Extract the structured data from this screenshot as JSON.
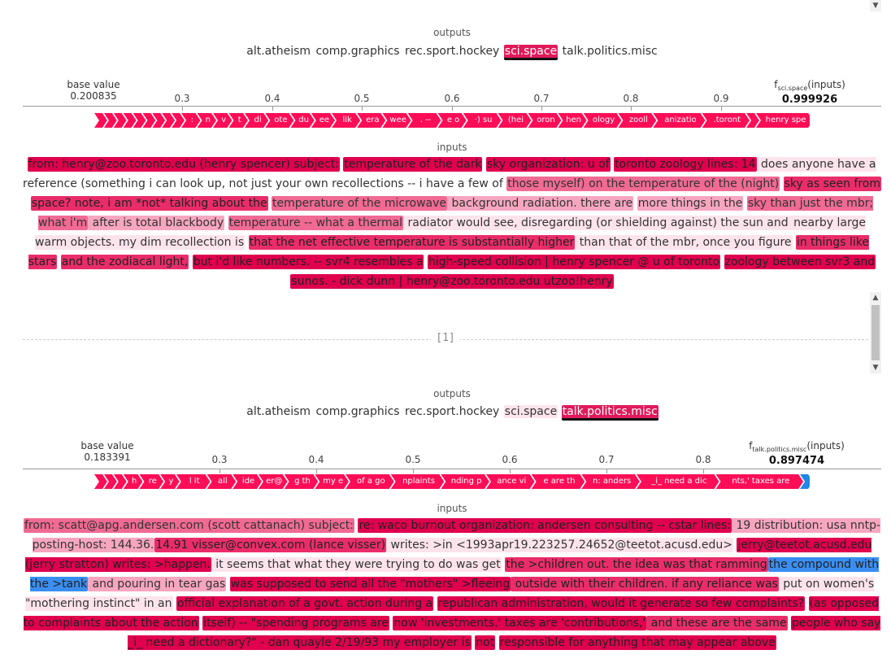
{
  "divider_label": "[1]",
  "panel1": {
    "outputs_title": "outputs",
    "outputs": [
      "alt.atheism",
      "comp.graphics",
      "rec.sport.hockey",
      "sci.space",
      "talk.politics.misc"
    ],
    "active_output": "sci.space",
    "base_value_label": "base value",
    "base_value": "0.200835",
    "fx_prefix": "f",
    "fx_sub": "sci.space",
    "fx_suffix": "(inputs)",
    "fx_value": "0.999926",
    "ticks": [
      "0.3",
      "0.4",
      "0.5",
      "0.6",
      "0.7",
      "0.8",
      "0.9"
    ],
    "bar_segments": [
      "",
      "",
      "",
      "",
      "",
      "",
      "",
      "",
      "",
      ":",
      "n",
      "v",
      "t",
      "di",
      "ote",
      "du",
      "ee",
      "lik",
      "era",
      "wee",
      ". --",
      "e o",
      "·) su",
      "(hei",
      "oron",
      "hen",
      "ology",
      "zooll",
      "anizatio",
      ".toront",
      "",
      "henry spe"
    ],
    "inputs_title": "inputs",
    "tokens": [
      {
        "t": "from: henry@zoo.toronto.edu (henry spencer) subject:",
        "h": "h5"
      },
      {
        "t": " ",
        "h": ""
      },
      {
        "t": "temperature of the dark",
        "h": "h5"
      },
      {
        "t": " ",
        "h": ""
      },
      {
        "t": "sky organization: u of",
        "h": "h5"
      },
      {
        "t": " ",
        "h": ""
      },
      {
        "t": "toronto zoology lines: 14",
        "h": "h5"
      },
      {
        "t": " does anyone have a",
        "h": "h1"
      },
      {
        "t": " reference (something i can look up, not just your own recollections -- i have a few of ",
        "h": ""
      },
      {
        "t": "those myself) on the temperature of the (night)",
        "h": "h3"
      },
      {
        "t": " ",
        "h": ""
      },
      {
        "t": "sky as seen from",
        "h": "h4"
      },
      {
        "t": " ",
        "h": ""
      },
      {
        "t": "space? note, i am *not* talking about the",
        "h": "h4"
      },
      {
        "t": " ",
        "h": ""
      },
      {
        "t": "temperature of the microwave",
        "h": "h3"
      },
      {
        "t": " background radiation. there are",
        "h": "h2"
      },
      {
        "t": " ",
        "h": ""
      },
      {
        "t": "more things in the",
        "h": "h2"
      },
      {
        "t": " ",
        "h": ""
      },
      {
        "t": "sky than just the mbr; what i'm",
        "h": "h3"
      },
      {
        "t": " after is total blackbody",
        "h": "h2"
      },
      {
        "t": " ",
        "h": ""
      },
      {
        "t": "temperature -- what a thermal",
        "h": "h3"
      },
      {
        "t": " radiator would see, disregarding (or shielding against) the sun and",
        "h": "h1"
      },
      {
        "t": " nearby large warm objects. my dim recollection is",
        "h": "h1"
      },
      {
        "t": " ",
        "h": ""
      },
      {
        "t": "that the net effective temperature is substantially higher",
        "h": "h4"
      },
      {
        "t": " than that of the mbr, once you figure",
        "h": "h1"
      },
      {
        "t": " ",
        "h": ""
      },
      {
        "t": "in things like stars",
        "h": "h4"
      },
      {
        "t": " ",
        "h": ""
      },
      {
        "t": "and the zodiacal light,",
        "h": "h4"
      },
      {
        "t": " ",
        "h": ""
      },
      {
        "t": "but i'd like numbers. -- svr4 resembles a",
        "h": "h5"
      },
      {
        "t": " ",
        "h": ""
      },
      {
        "t": "high-speed collision | henry spencer @ u of toronto",
        "h": "h5"
      },
      {
        "t": " ",
        "h": ""
      },
      {
        "t": "zoology between svr3 and",
        "h": "h5"
      },
      {
        "t": " ",
        "h": ""
      },
      {
        "t": "sunos. - dick dunn | henry@zoo.toronto.edu utzoo!henry",
        "h": "h5"
      }
    ]
  },
  "panel2": {
    "outputs_title": "outputs",
    "outputs": [
      "alt.atheism",
      "comp.graphics",
      "rec.sport.hockey",
      "sci.space",
      "talk.politics.misc"
    ],
    "active_output": "talk.politics.misc",
    "base_value_label": "base value",
    "base_value": "0.183391",
    "fx_prefix": "f",
    "fx_sub": "talk.politics.misc",
    "fx_suffix": "(inputs)",
    "fx_value": "0.897474",
    "ticks": [
      "0.3",
      "0.4",
      "0.5",
      "0.6",
      "0.7",
      "0.8"
    ],
    "bar_segments": [
      "",
      "",
      "",
      "h",
      "re",
      "y",
      "l it",
      "all",
      "ide",
      "er@",
      "g th",
      "my e",
      "of a go",
      "nplaints",
      "nding p",
      "ance vi",
      "e are th",
      "n: anders",
      "_i_ need a dic",
      "nts,' taxes are"
    ],
    "inputs_title": "inputs",
    "tokens": [
      {
        "t": "from: scatt@apg.andersen.com (scott cattanach) subject:",
        "h": "h3"
      },
      {
        "t": " ",
        "h": ""
      },
      {
        "t": "re: waco burnout organization: andersen consulting -- cstar lines:",
        "h": "h5"
      },
      {
        "t": " 19 distribution: usa nntp-posting-host: 144.36.",
        "h": "h2"
      },
      {
        "t": "14.91 visser@convex.com (lance visser)",
        "h": "h4"
      },
      {
        "t": " writes: >in <1993apr19.223257.24652@teetot.acusd.edu>",
        "h": "h1"
      },
      {
        "t": " ",
        "h": ""
      },
      {
        "t": "jerry@teetot.acusd.edu (jerry stratton) writes: >happen.",
        "h": "h5"
      },
      {
        "t": " it seems that what they were trying to do was get",
        "h": "h1"
      },
      {
        "t": " ",
        "h": ""
      },
      {
        "t": "the >children out. the idea was that ramming",
        "h": "h4"
      },
      {
        "t": "the compound with the >tank",
        "h": "hb"
      },
      {
        "t": " and pouring in tear gas",
        "h": "h2"
      },
      {
        "t": " ",
        "h": ""
      },
      {
        "t": "was supposed to send all the \"mothers\" >fleeing",
        "h": "h5"
      },
      {
        "t": " outside with their children. if any reliance was",
        "h": "h4"
      },
      {
        "t": " put on women's \"mothering instinct\" in an",
        "h": "h1"
      },
      {
        "t": " ",
        "h": ""
      },
      {
        "t": "official explanation of a govt. action during a",
        "h": "h5"
      },
      {
        "t": " ",
        "h": ""
      },
      {
        "t": "republican administration, would it generate so few complaints?",
        "h": "h5"
      },
      {
        "t": " ",
        "h": ""
      },
      {
        "t": "(as opposed to complaints about the action",
        "h": "h5"
      },
      {
        "t": " ",
        "h": ""
      },
      {
        "t": "itself) -- \"spending programs are",
        "h": "h5"
      },
      {
        "t": " ",
        "h": ""
      },
      {
        "t": "now 'investments,' taxes are 'contributions,'",
        "h": "h5"
      },
      {
        "t": " and these are the same",
        "h": "h4"
      },
      {
        "t": " ",
        "h": ""
      },
      {
        "t": "people who say _i_ need a dictionary?\" - dan quayle 2/19/93 my employer is",
        "h": "h5"
      },
      {
        "t": " ",
        "h": ""
      },
      {
        "t": "not",
        "h": "h5"
      },
      {
        "t": " ",
        "h": ""
      },
      {
        "t": "responsible for anything that may appear above",
        "h": "h5"
      }
    ]
  }
}
